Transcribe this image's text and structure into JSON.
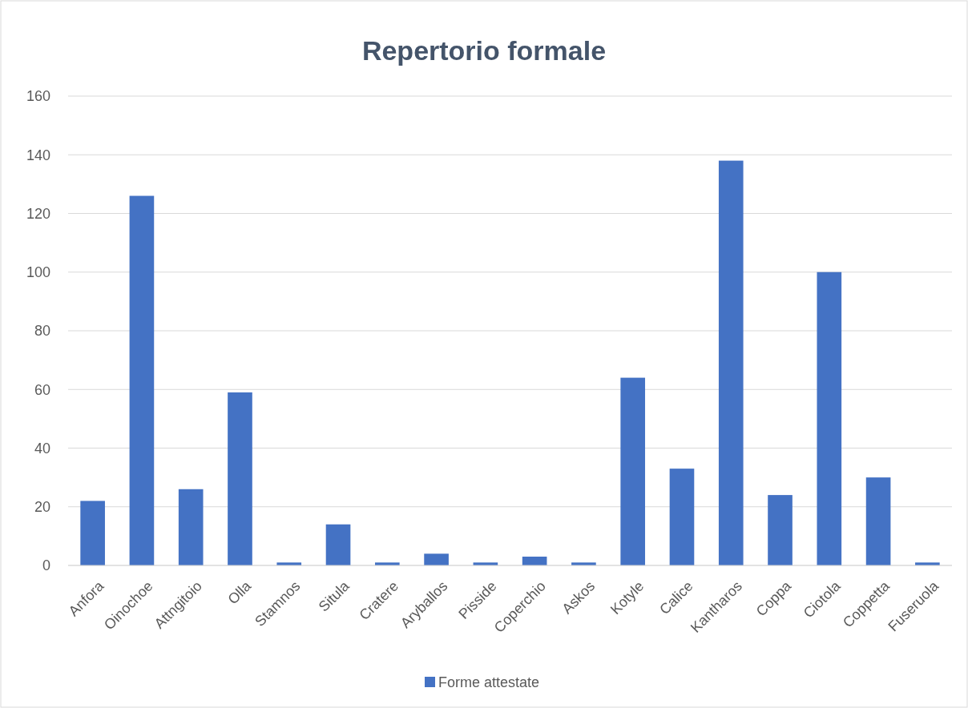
{
  "chart_data": {
    "type": "bar",
    "title": "Repertorio formale",
    "categories": [
      "Anfora",
      "Oinochoe",
      "Attngitoio",
      "Olla",
      "Stamnos",
      "Situla",
      "Cratere",
      "Aryballos",
      "Pisside",
      "Coperchio",
      "Askos",
      "Kotyle",
      "Calice",
      "Kantharos",
      "Coppa",
      "Ciotola",
      "Coppetta",
      "Fuseruola"
    ],
    "series": [
      {
        "name": "Forme attestate",
        "color": "#4472c4",
        "values": [
          22,
          126,
          26,
          59,
          1,
          14,
          1,
          4,
          1,
          3,
          1,
          64,
          33,
          138,
          24,
          100,
          30,
          1
        ]
      }
    ],
    "ylim": [
      0,
      160
    ],
    "yticks": [
      0,
      20,
      40,
      60,
      80,
      100,
      120,
      140,
      160
    ],
    "grid": "y",
    "legend": "bottom"
  }
}
